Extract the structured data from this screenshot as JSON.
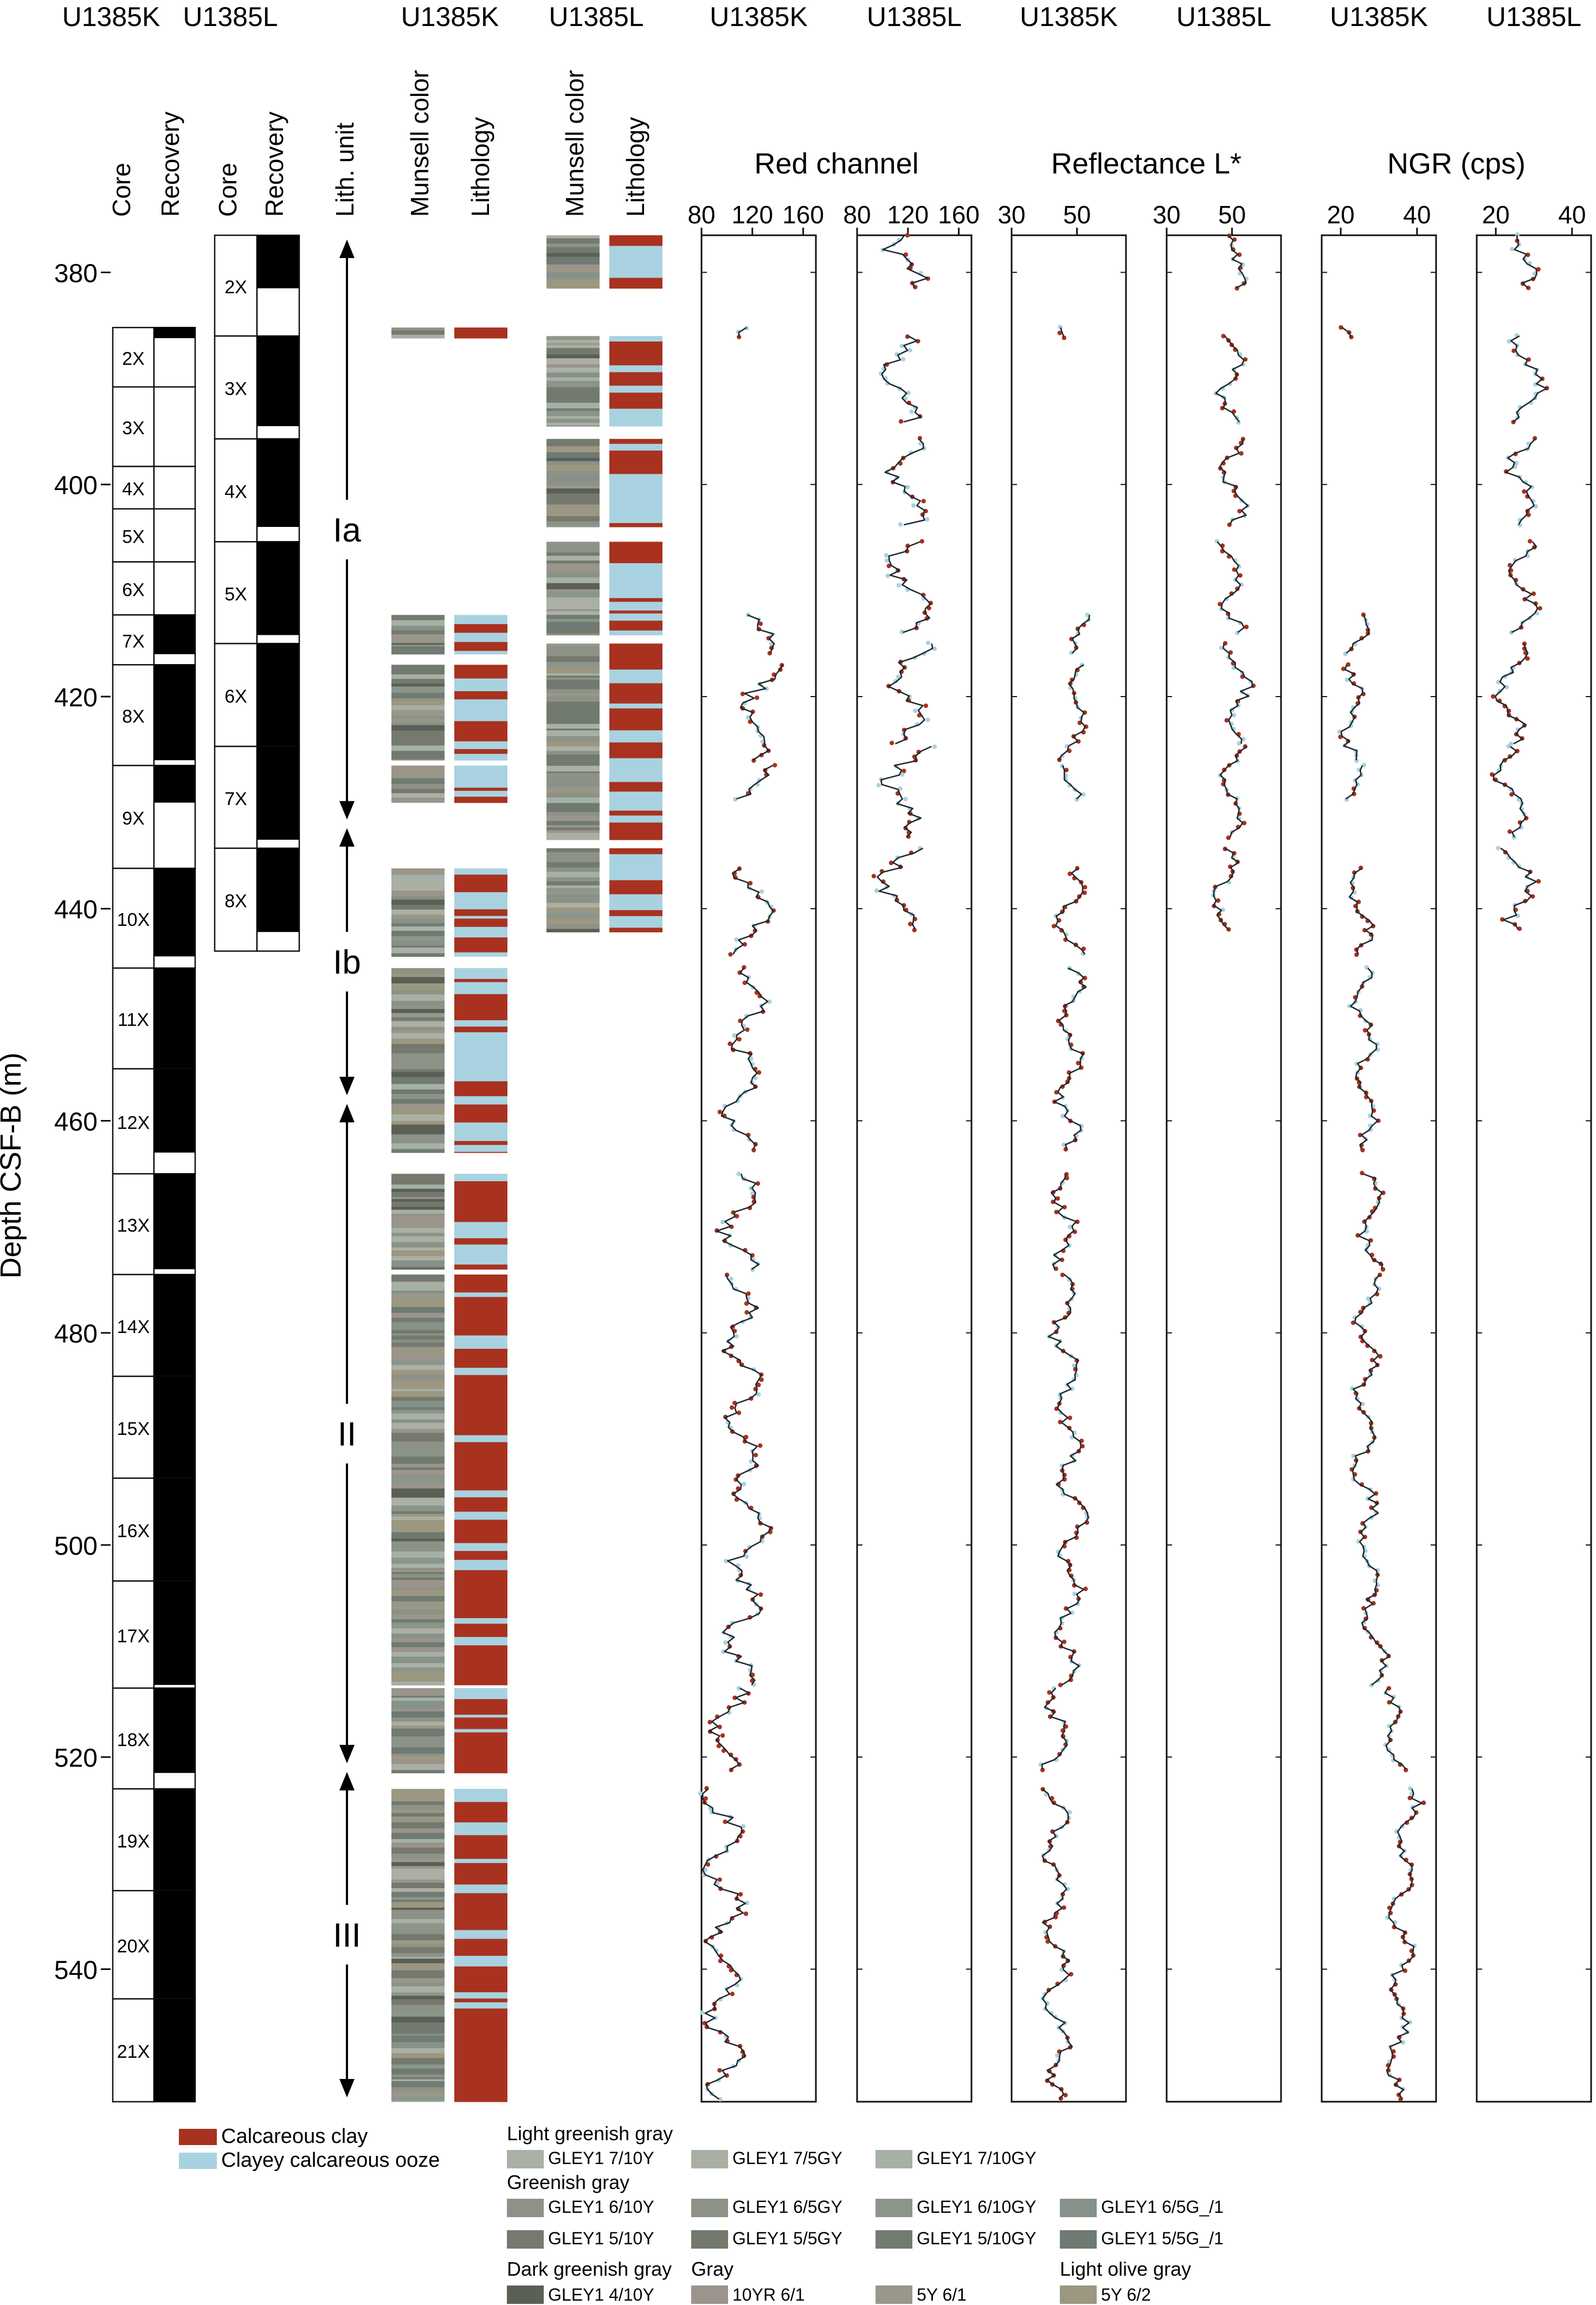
{
  "colors": {
    "calcareous_clay": "#a8321f",
    "clayey_ooze": "#a9d2e0",
    "gray_dark": "#707a72",
    "gray_light": "#a8ac9f",
    "smooth_line": "#1f2a2e",
    "frame": "#111111"
  },
  "figure": {
    "depth_axis_label": "Depth CSF-B (m)",
    "depth_ticks": [
      "380",
      "400",
      "420",
      "440",
      "460",
      "480",
      "500",
      "520",
      "540"
    ],
    "recovery": {
      "holes": [
        {
          "hole": "U1385K",
          "core_header": "Core",
          "recovery_header": "Recovery"
        },
        {
          "hole": "U1385L",
          "core_header": "Core",
          "recovery_header": "Recovery"
        }
      ],
      "cores": {
        "U1385K": [
          {
            "label": "2X",
            "top": 385.2,
            "bottom": 390.8,
            "recovered_to": 386.2
          },
          {
            "label": "3X",
            "top": 390.8,
            "bottom": 398.3,
            "recovered_to": 390.8
          },
          {
            "label": "4X",
            "top": 398.3,
            "bottom": 402.3,
            "recovered_to": 398.3
          },
          {
            "label": "5X",
            "top": 402.3,
            "bottom": 407.3,
            "recovered_to": 402.3
          },
          {
            "label": "6X",
            "top": 407.3,
            "bottom": 412.3,
            "recovered_to": 407.3
          },
          {
            "label": "7X",
            "top": 412.3,
            "bottom": 417.0,
            "recovered_to": 416.0
          },
          {
            "label": "8X",
            "top": 417.0,
            "bottom": 426.5,
            "recovered_to": 426.0
          },
          {
            "label": "9X",
            "top": 426.5,
            "bottom": 436.2,
            "recovered_to": 430.0
          },
          {
            "label": "10X",
            "top": 436.2,
            "bottom": 445.6,
            "recovered_to": 444.5
          },
          {
            "label": "11X",
            "top": 445.6,
            "bottom": 455.1,
            "recovered_to": 455.1
          },
          {
            "label": "12X",
            "top": 455.1,
            "bottom": 465.0,
            "recovered_to": 463.0
          },
          {
            "label": "13X",
            "top": 465.0,
            "bottom": 474.5,
            "recovered_to": 474.0
          },
          {
            "label": "14X",
            "top": 474.5,
            "bottom": 484.1,
            "recovered_to": 484.1
          },
          {
            "label": "15X",
            "top": 484.1,
            "bottom": 493.7,
            "recovered_to": 493.7
          },
          {
            "label": "16X",
            "top": 493.7,
            "bottom": 503.4,
            "recovered_to": 503.4
          },
          {
            "label": "17X",
            "top": 503.4,
            "bottom": 513.5,
            "recovered_to": 513.2
          },
          {
            "label": "18X",
            "top": 513.5,
            "bottom": 523.0,
            "recovered_to": 521.5
          },
          {
            "label": "19X",
            "top": 523.0,
            "bottom": 532.6,
            "recovered_to": 532.6
          },
          {
            "label": "20X",
            "top": 532.6,
            "bottom": 542.8,
            "recovered_to": 542.8
          },
          {
            "label": "21X",
            "top": 542.8,
            "bottom": 552.5,
            "recovered_to": 552.5
          }
        ],
        "U1385L": [
          {
            "label": "2X",
            "top": 376.5,
            "bottom": 386.0,
            "recovered_to": 381.5
          },
          {
            "label": "3X",
            "top": 386.0,
            "bottom": 395.7,
            "recovered_to": 394.5
          },
          {
            "label": "4X",
            "top": 395.7,
            "bottom": 405.4,
            "recovered_to": 404.0
          },
          {
            "label": "5X",
            "top": 405.4,
            "bottom": 415.0,
            "recovered_to": 414.2
          },
          {
            "label": "6X",
            "top": 415.0,
            "bottom": 424.7,
            "recovered_to": 424.7
          },
          {
            "label": "7X",
            "top": 424.7,
            "bottom": 434.3,
            "recovered_to": 433.5
          },
          {
            "label": "8X",
            "top": 434.3,
            "bottom": 444.0,
            "recovered_to": 442.2
          }
        ]
      }
    },
    "lith_units": {
      "header": "Lith. unit",
      "units": [
        {
          "label": "Ia",
          "top": 376.5,
          "bottom": 432.0
        },
        {
          "label": "Ib",
          "top": 432.0,
          "bottom": 458.0
        },
        {
          "label": "II",
          "top": 458.0,
          "bottom": 521.0
        },
        {
          "label": "III",
          "top": 521.0,
          "bottom": 552.5
        }
      ]
    },
    "lithology_columns": [
      {
        "hole": "U1385K",
        "munsell_header": "Munsell color",
        "lithology_header": "Lithology",
        "intervals": [
          [
            385.2,
            386.2
          ],
          [
            412.3,
            416.0
          ],
          [
            417.0,
            426.0
          ],
          [
            426.5,
            430.0
          ],
          [
            436.2,
            444.5
          ],
          [
            445.6,
            463.0
          ],
          [
            465.0,
            474.0
          ],
          [
            474.5,
            513.2
          ],
          [
            513.5,
            521.5
          ],
          [
            523.0,
            552.5
          ]
        ]
      },
      {
        "hole": "U1385L",
        "munsell_header": "Munsell color",
        "lithology_header": "Lithology",
        "intervals": [
          [
            376.5,
            381.5
          ],
          [
            386.0,
            394.5
          ],
          [
            395.7,
            404.0
          ],
          [
            405.4,
            414.2
          ],
          [
            415.0,
            424.7
          ],
          [
            424.7,
            433.5
          ],
          [
            434.3,
            442.2
          ]
        ]
      }
    ],
    "legend": {
      "lithology": [
        {
          "label": "Calcareous clay",
          "color": "#a8321f"
        },
        {
          "label": "Clayey calcareous ooze",
          "color": "#a9d2e0"
        }
      ],
      "munsell_groups": [
        {
          "group": "Light greenish gray",
          "items": [
            {
              "label": "GLEY1 7/10Y",
              "color": "#aab0a4"
            },
            {
              "label": "GLEY1 7/5GY",
              "color": "#a9b0a3"
            },
            {
              "label": "GLEY1 7/10GY",
              "color": "#a5b1a6"
            }
          ]
        },
        {
          "group": "Greenish gray",
          "items": [
            {
              "label": "GLEY1 6/10Y",
              "color": "#8e9286"
            },
            {
              "label": "GLEY1 6/5GY",
              "color": "#8c9286"
            },
            {
              "label": "GLEY1 6/10GY",
              "color": "#8a968c"
            },
            {
              "label": "GLEY1 6/5G_/1",
              "color": "#869289"
            },
            {
              "label": "GLEY1 5/10Y",
              "color": "#767a6e"
            },
            {
              "label": "GLEY1 5/5GY",
              "color": "#737a6d"
            },
            {
              "label": "GLEY1 5/10GY",
              "color": "#717b72"
            },
            {
              "label": "GLEY1 5/5G_/1",
              "color": "#6e7a72"
            }
          ]
        },
        {
          "group": "Dark greenish gray",
          "items": [
            {
              "label": "GLEY1 4/10Y",
              "color": "#5b6056"
            }
          ]
        },
        {
          "group": "Gray",
          "items": [
            {
              "label": "10YR 6/1",
              "color": "#9a948c"
            },
            {
              "label": "5Y 6/1",
              "color": "#99978b"
            }
          ]
        },
        {
          "group": "Light olive gray",
          "items": [
            {
              "label": "5Y 6/2",
              "color": "#9c9780"
            }
          ]
        }
      ]
    }
  },
  "chart_data": [
    {
      "type": "scatter",
      "title": "Red channel",
      "hole": "U1385K",
      "xlim": [
        80,
        170
      ],
      "xticks": [
        80,
        120,
        160
      ],
      "ylim": [
        552.5,
        376.5
      ],
      "ylabel": "Depth CSF-B (m)",
      "series": [
        {
          "name": "U1385K",
          "mean_by_depth": [
            [
              385.5,
              120
            ],
            [
              414,
              130
            ],
            [
              420,
              125
            ],
            [
              430,
              122
            ],
            [
              440,
              120
            ],
            [
              450,
              118
            ],
            [
              460,
              112
            ],
            [
              470,
              108
            ],
            [
              480,
              110
            ],
            [
              490,
              115
            ],
            [
              500,
              118
            ],
            [
              510,
              110
            ],
            [
              518,
              98
            ],
            [
              525,
              95
            ],
            [
              535,
              98
            ],
            [
              545,
              96
            ],
            [
              552,
              100
            ]
          ],
          "amplitude": 14
        }
      ]
    },
    {
      "type": "scatter",
      "title": "Red channel",
      "hole": "U1385L",
      "xlim": [
        80,
        170
      ],
      "xticks": [
        80,
        120,
        160
      ],
      "ylim": [
        552.5,
        376.5
      ],
      "series": [
        {
          "name": "U1385L",
          "mean_by_depth": [
            [
              377,
              120
            ],
            [
              381,
              118
            ],
            [
              387,
              112
            ],
            [
              393,
              115
            ],
            [
              397,
              120
            ],
            [
              404,
              118
            ],
            [
              407,
              118
            ],
            [
              413,
              125
            ],
            [
              416,
              122
            ],
            [
              424,
              120
            ],
            [
              430,
              115
            ],
            [
              436,
              112
            ],
            [
              442,
              110
            ]
          ],
          "amplitude": 16
        }
      ]
    },
    {
      "type": "scatter",
      "title": "Reflectance L*",
      "hole": "U1385K",
      "xlim": [
        30,
        65
      ],
      "xticks": [
        30,
        50
      ],
      "ylim": [
        552.5,
        376.5
      ],
      "series": [
        {
          "name": "U1385K",
          "mean_by_depth": [
            [
              385.5,
              47
            ],
            [
              414,
              52
            ],
            [
              420,
              50
            ],
            [
              430,
              48
            ],
            [
              440,
              48
            ],
            [
              450,
              48
            ],
            [
              460,
              47
            ],
            [
              470,
              46
            ],
            [
              480,
              46
            ],
            [
              490,
              48
            ],
            [
              500,
              49
            ],
            [
              510,
              47
            ],
            [
              518,
              43
            ],
            [
              525,
              43
            ],
            [
              535,
              44
            ],
            [
              545,
              44
            ],
            [
              552,
              45
            ]
          ],
          "amplitude": 4
        }
      ]
    },
    {
      "type": "scatter",
      "title": "Reflectance L*",
      "hole": "U1385L",
      "xlim": [
        30,
        65
      ],
      "xticks": [
        30,
        50
      ],
      "ylim": [
        552.5,
        376.5
      ],
      "series": [
        {
          "name": "U1385L",
          "mean_by_depth": [
            [
              377,
              52
            ],
            [
              381,
              51
            ],
            [
              387,
              49
            ],
            [
              393,
              50
            ],
            [
              397,
              51
            ],
            [
              404,
              50
            ],
            [
              407,
              49
            ],
            [
              413,
              52
            ],
            [
              416,
              51
            ],
            [
              424,
              52
            ],
            [
              430,
              50
            ],
            [
              436,
              48
            ],
            [
              442,
              47
            ]
          ],
          "amplitude": 4
        }
      ]
    },
    {
      "type": "scatter",
      "title": "NGR (cps)",
      "hole": "U1385K",
      "xlim": [
        15,
        45
      ],
      "xticks": [
        20,
        40
      ],
      "ylim": [
        552.5,
        376.5
      ],
      "series": [
        {
          "name": "U1385K",
          "mean_by_depth": [
            [
              385.5,
              22
            ],
            [
              414,
              24
            ],
            [
              420,
              23
            ],
            [
              430,
              24
            ],
            [
              440,
              25
            ],
            [
              450,
              26
            ],
            [
              460,
              27
            ],
            [
              470,
              28
            ],
            [
              480,
              27
            ],
            [
              490,
              26
            ],
            [
              500,
              27
            ],
            [
              510,
              29
            ],
            [
              518,
              34
            ],
            [
              525,
              38
            ],
            [
              535,
              36
            ],
            [
              545,
              35
            ],
            [
              552,
              34
            ]
          ],
          "amplitude": 3
        }
      ]
    },
    {
      "type": "scatter",
      "title": "NGR (cps)",
      "hole": "U1385L",
      "xlim": [
        15,
        45
      ],
      "xticks": [
        20,
        40
      ],
      "ylim": [
        552.5,
        376.5
      ],
      "series": [
        {
          "name": "U1385L",
          "mean_by_depth": [
            [
              377,
              27
            ],
            [
              381,
              26
            ],
            [
              387,
              28
            ],
            [
              393,
              30
            ],
            [
              397,
              27
            ],
            [
              404,
              27
            ],
            [
              407,
              28
            ],
            [
              413,
              26
            ],
            [
              416,
              24
            ],
            [
              424,
              23
            ],
            [
              430,
              24
            ],
            [
              436,
              26
            ],
            [
              442,
              27
            ]
          ],
          "amplitude": 4
        }
      ]
    }
  ]
}
